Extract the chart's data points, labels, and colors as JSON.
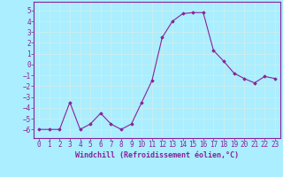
{
  "x": [
    0,
    1,
    2,
    3,
    4,
    5,
    6,
    7,
    8,
    9,
    10,
    11,
    12,
    13,
    14,
    15,
    16,
    17,
    18,
    19,
    20,
    21,
    22,
    23
  ],
  "y": [
    -6,
    -6,
    -6,
    -3.5,
    -6,
    -5.5,
    -4.5,
    -5.5,
    -6,
    -5.5,
    -3.5,
    -1.5,
    2.5,
    4,
    4.7,
    4.8,
    4.8,
    1.3,
    0.3,
    -0.8,
    -1.3,
    -1.7,
    -1.1,
    -1.3
  ],
  "line_color": "#882299",
  "marker": "D",
  "marker_size": 1.8,
  "bg_color": "#aaeeff",
  "grid_color": "#cceeee",
  "tick_color": "#882299",
  "label_color": "#882299",
  "xlabel": "Windchill (Refroidissement éolien,°C)",
  "xlim": [
    -0.5,
    23.5
  ],
  "ylim": [
    -6.8,
    5.8
  ],
  "yticks": [
    -6,
    -5,
    -4,
    -3,
    -2,
    -1,
    0,
    1,
    2,
    3,
    4,
    5
  ],
  "xticks": [
    0,
    1,
    2,
    3,
    4,
    5,
    6,
    7,
    8,
    9,
    10,
    11,
    12,
    13,
    14,
    15,
    16,
    17,
    18,
    19,
    20,
    21,
    22,
    23
  ],
  "font_size": 5.5,
  "xlabel_size": 6.0,
  "linewidth": 0.8
}
